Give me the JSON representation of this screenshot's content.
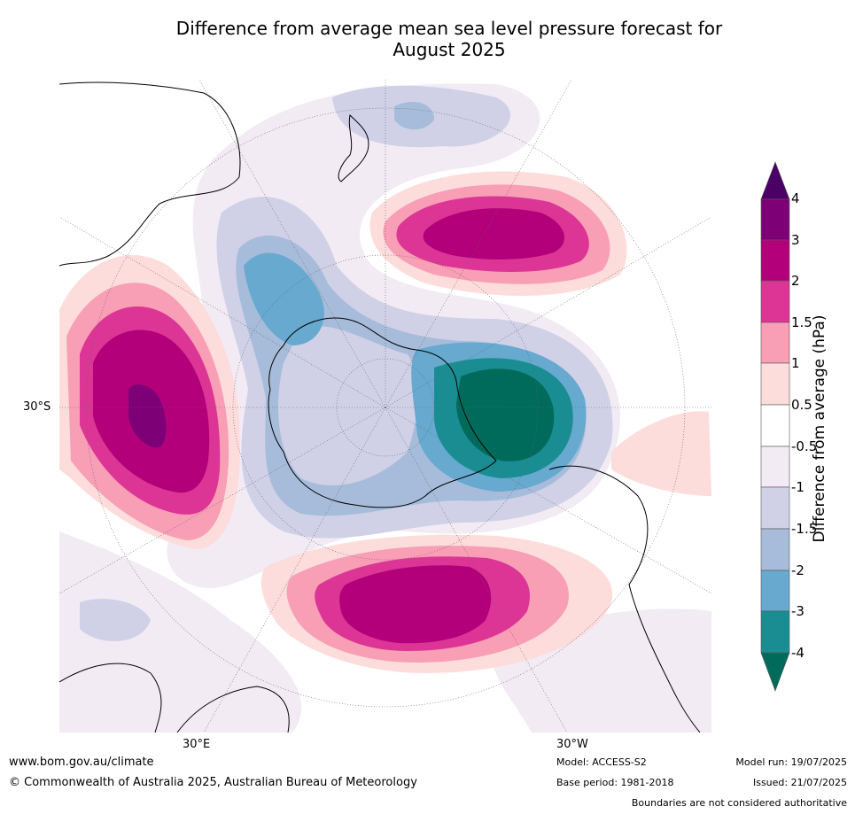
{
  "title": {
    "line1": "Difference from average mean sea level pressure forecast for",
    "line2": "August 2025"
  },
  "axis_labels": {
    "lat30s": "30°S",
    "lon30e": "30°E",
    "lon30w": "30°W"
  },
  "colorbar": {
    "label": "Difference from average (hPa)",
    "ticks": [
      "4",
      "3",
      "2",
      "1.5",
      "1",
      "0.5",
      "-0.5",
      "-1",
      "-1.5",
      "-2",
      "-3",
      "-4"
    ],
    "colors": [
      "#4b0066",
      "#7e0077",
      "#b3007a",
      "#dc3596",
      "#f89eb5",
      "#fddcdc",
      "#ffffff",
      "#f2ebf4",
      "#d0d1e6",
      "#a7bcdb",
      "#67a9cf",
      "#1a8d92",
      "#016b5b"
    ]
  },
  "footer": {
    "website": "www.bom.gov.au/climate",
    "copyright": "© Commonwealth of Australia 2025, Australian Bureau of Meteorology",
    "model": "Model: ACCESS-S2",
    "base_period": "Base period: 1981-2018",
    "model_run": "Model run: 19/07/2025",
    "issued": "Issued: 21/07/2025",
    "disclaimer": "Boundaries are not considered authoritative"
  }
}
